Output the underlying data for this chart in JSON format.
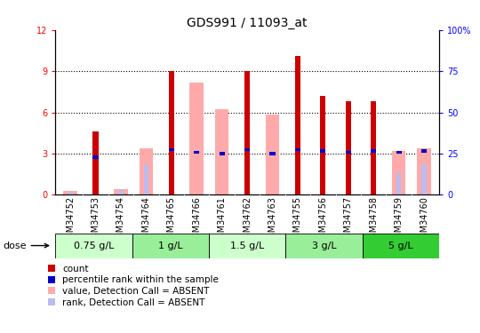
{
  "title": "GDS991 / 11093_at",
  "samples": [
    "GSM34752",
    "GSM34753",
    "GSM34754",
    "GSM34764",
    "GSM34765",
    "GSM34766",
    "GSM34761",
    "GSM34762",
    "GSM34763",
    "GSM34755",
    "GSM34756",
    "GSM34757",
    "GSM34758",
    "GSM34759",
    "GSM34760"
  ],
  "count_values": [
    0,
    4.6,
    0,
    0,
    9.0,
    0,
    0,
    9.0,
    0,
    10.1,
    7.2,
    6.8,
    6.8,
    0,
    0
  ],
  "percentile_values": [
    0,
    2.75,
    0,
    0,
    3.3,
    3.1,
    3.0,
    3.3,
    3.0,
    3.3,
    3.2,
    3.1,
    3.2,
    3.1,
    3.2
  ],
  "absent_value_values": [
    0.3,
    0,
    0.4,
    3.4,
    0,
    8.2,
    6.2,
    0,
    5.85,
    0,
    0,
    0,
    0,
    3.2,
    3.4
  ],
  "absent_rank_values": [
    0.25,
    0,
    0.35,
    2.2,
    0,
    0,
    0,
    0,
    0,
    0,
    0,
    0,
    0,
    1.6,
    2.2
  ],
  "doses": [
    {
      "label": "0.75 g/L",
      "start": 0,
      "end": 3,
      "color": "#ccffcc"
    },
    {
      "label": "1 g/L",
      "start": 3,
      "end": 6,
      "color": "#99ee99"
    },
    {
      "label": "1.5 g/L",
      "start": 6,
      "end": 9,
      "color": "#ccffcc"
    },
    {
      "label": "3 g/L",
      "start": 9,
      "end": 12,
      "color": "#99ee99"
    },
    {
      "label": "5 g/L",
      "start": 12,
      "end": 15,
      "color": "#33cc33"
    }
  ],
  "ylim_left": [
    0,
    12
  ],
  "ylim_right": [
    0,
    100
  ],
  "count_color": "#cc0000",
  "percentile_color": "#0000cc",
  "absent_value_color": "#ffaaaa",
  "absent_rank_color": "#bbbbee",
  "bg_color": "#ffffff",
  "plot_bg": "#ffffff",
  "title_fontsize": 10,
  "tick_fontsize": 7,
  "legend_fontsize": 7.5,
  "label_fontsize": 8,
  "dose_fontsize": 8
}
